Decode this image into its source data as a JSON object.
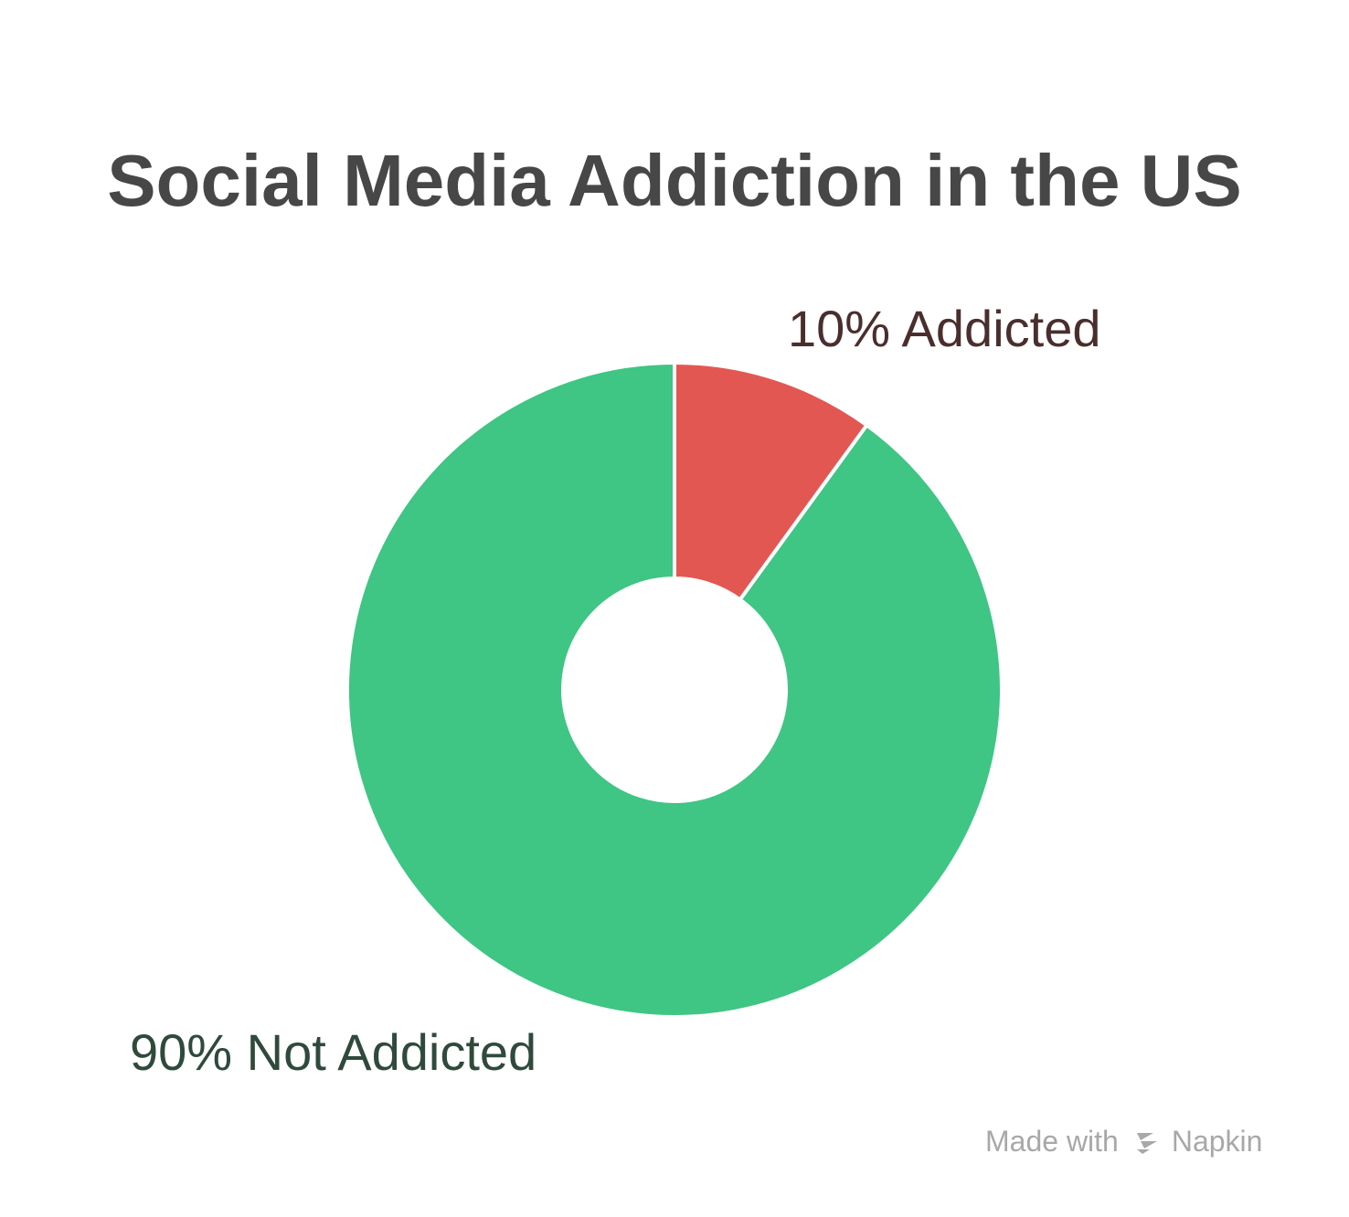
{
  "title": "Social Media Addiction in the US",
  "chart_data": {
    "type": "pie",
    "title": "Social Media Addiction in the US",
    "donut": true,
    "slices": [
      {
        "label": "10% Addicted",
        "value": 10,
        "color": "#e35753"
      },
      {
        "label": "90% Not Addicted",
        "value": 90,
        "color": "#3fc584"
      }
    ],
    "start_angle": "top",
    "direction": "clockwise",
    "legend": "none"
  },
  "credit": {
    "prefix": "Made with",
    "brand": "Napkin",
    "logo_icon": "napkin-logo-icon"
  }
}
